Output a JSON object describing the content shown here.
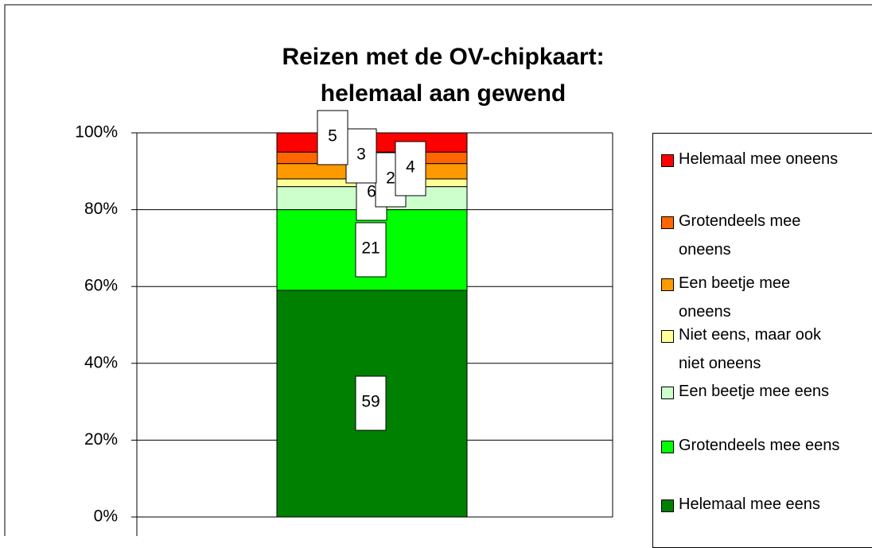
{
  "chart_data": {
    "type": "stacked_bar",
    "title": "Reizen met de OV-chipkaart: helemaal aan gewend",
    "categories": [
      null
    ],
    "series": [
      {
        "name": "Helemaal mee eens",
        "color": "#008000",
        "values": [
          59
        ]
      },
      {
        "name": "Grotendeels mee eens",
        "color": "#00ff00",
        "values": [
          21
        ]
      },
      {
        "name": "Een beetje mee eens",
        "color": "#ccffcc",
        "values": [
          6
        ]
      },
      {
        "name": "Niet eens, maar ook niet oneens",
        "color": "#ffff99",
        "values": [
          2
        ]
      },
      {
        "name": "Een beetje mee oneens",
        "color": "#ff9900",
        "values": [
          4
        ]
      },
      {
        "name": "Grotendeels mee oneens",
        "color": "#ff6600",
        "values": [
          3
        ]
      },
      {
        "name": "Helemaal mee oneens",
        "color": "#ff0000",
        "values": [
          5
        ]
      }
    ],
    "ylim": [
      0,
      100
    ],
    "yticks": [
      {
        "value": 0,
        "label": "0%"
      },
      {
        "value": 20,
        "label": "20%"
      },
      {
        "value": 40,
        "label": "40%"
      },
      {
        "value": 60,
        "label": "60%"
      },
      {
        "value": 80,
        "label": "80%"
      },
      {
        "value": 100,
        "label": "100%"
      }
    ],
    "grid": true,
    "legend": "right"
  }
}
